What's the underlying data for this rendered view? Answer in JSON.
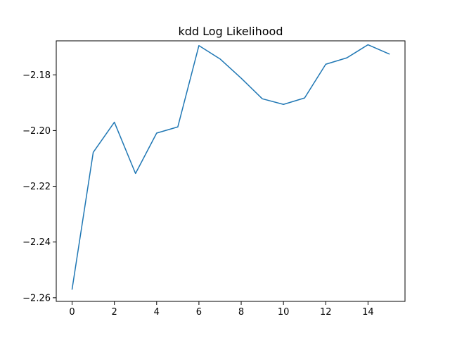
{
  "chart_data": {
    "type": "line",
    "title": "kdd Log Likelihood",
    "xlabel": "",
    "ylabel": "",
    "x": [
      0,
      1,
      2,
      3,
      4,
      5,
      6,
      7,
      8,
      9,
      10,
      11,
      12,
      13,
      14,
      15
    ],
    "series": [
      {
        "values": [
          -2.2569,
          -2.2078,
          -2.197,
          -2.2154,
          -2.2009,
          -2.1987,
          -2.1695,
          -2.1743,
          -2.1812,
          -2.1886,
          -2.1906,
          -2.1883,
          -2.1762,
          -2.1739,
          -2.1692,
          -2.1725
        ],
        "color": "#1f77b4"
      }
    ],
    "xlim": [
      -0.75,
      15.75
    ],
    "ylim": [
      -2.2613,
      -2.1678
    ],
    "xticks": [
      0,
      2,
      4,
      6,
      8,
      10,
      12,
      14
    ],
    "xtick_labels": [
      "0",
      "2",
      "4",
      "6",
      "8",
      "10",
      "12",
      "14"
    ],
    "yticks": [
      -2.26,
      -2.24,
      -2.22,
      -2.2,
      -2.18
    ],
    "ytick_labels": [
      "−2.26",
      "−2.24",
      "−2.22",
      "−2.20",
      "−2.18"
    ],
    "grid": false,
    "legend": "none"
  }
}
